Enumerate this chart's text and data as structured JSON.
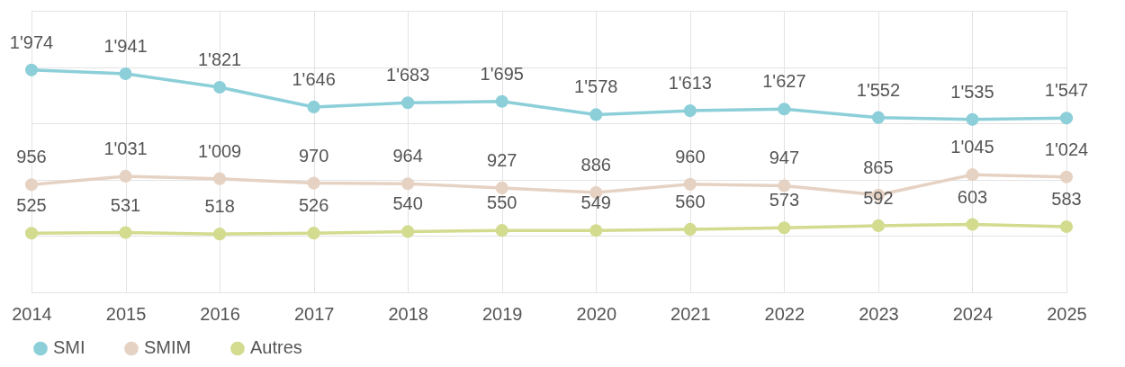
{
  "chart_data": {
    "type": "line",
    "categories": [
      "2014",
      "2015",
      "2016",
      "2017",
      "2018",
      "2019",
      "2020",
      "2021",
      "2022",
      "2023",
      "2024",
      "2025"
    ],
    "series": [
      {
        "name": "SMI",
        "color": "#8ccfd9",
        "values": [
          1974,
          1941,
          1821,
          1646,
          1683,
          1695,
          1578,
          1613,
          1627,
          1552,
          1535,
          1547
        ],
        "value_labels": [
          "1'974",
          "1'941",
          "1'821",
          "1'646",
          "1'683",
          "1'695",
          "1'578",
          "1'613",
          "1'627",
          "1'552",
          "1'535",
          "1'547"
        ]
      },
      {
        "name": "SMIM",
        "color": "#e6d2c3",
        "values": [
          956,
          1031,
          1009,
          970,
          964,
          927,
          886,
          960,
          947,
          865,
          1045,
          1024
        ],
        "value_labels": [
          "956",
          "1'031",
          "1'009",
          "970",
          "964",
          "927",
          "886",
          "960",
          "947",
          "865",
          "1'045",
          "1'024"
        ]
      },
      {
        "name": "Autres",
        "color": "#d3db8f",
        "values": [
          525,
          531,
          518,
          526,
          540,
          550,
          549,
          560,
          573,
          592,
          603,
          583
        ],
        "value_labels": [
          "525",
          "531",
          "518",
          "526",
          "540",
          "550",
          "549",
          "560",
          "573",
          "592",
          "603",
          "583"
        ]
      }
    ],
    "ylim": [
      0,
      2500
    ],
    "yticks": [
      {
        "value": 0,
        "label": null
      },
      {
        "value": 500,
        "label": null
      },
      {
        "value": 1000,
        "label": null
      },
      {
        "value": 1500,
        "label": null
      },
      {
        "value": 2000,
        "label": null
      },
      {
        "value": 2500,
        "label": null
      }
    ],
    "grid": true,
    "legend": "bottom",
    "marker": "circle",
    "line_style": "solid",
    "tick_labels": "x"
  }
}
